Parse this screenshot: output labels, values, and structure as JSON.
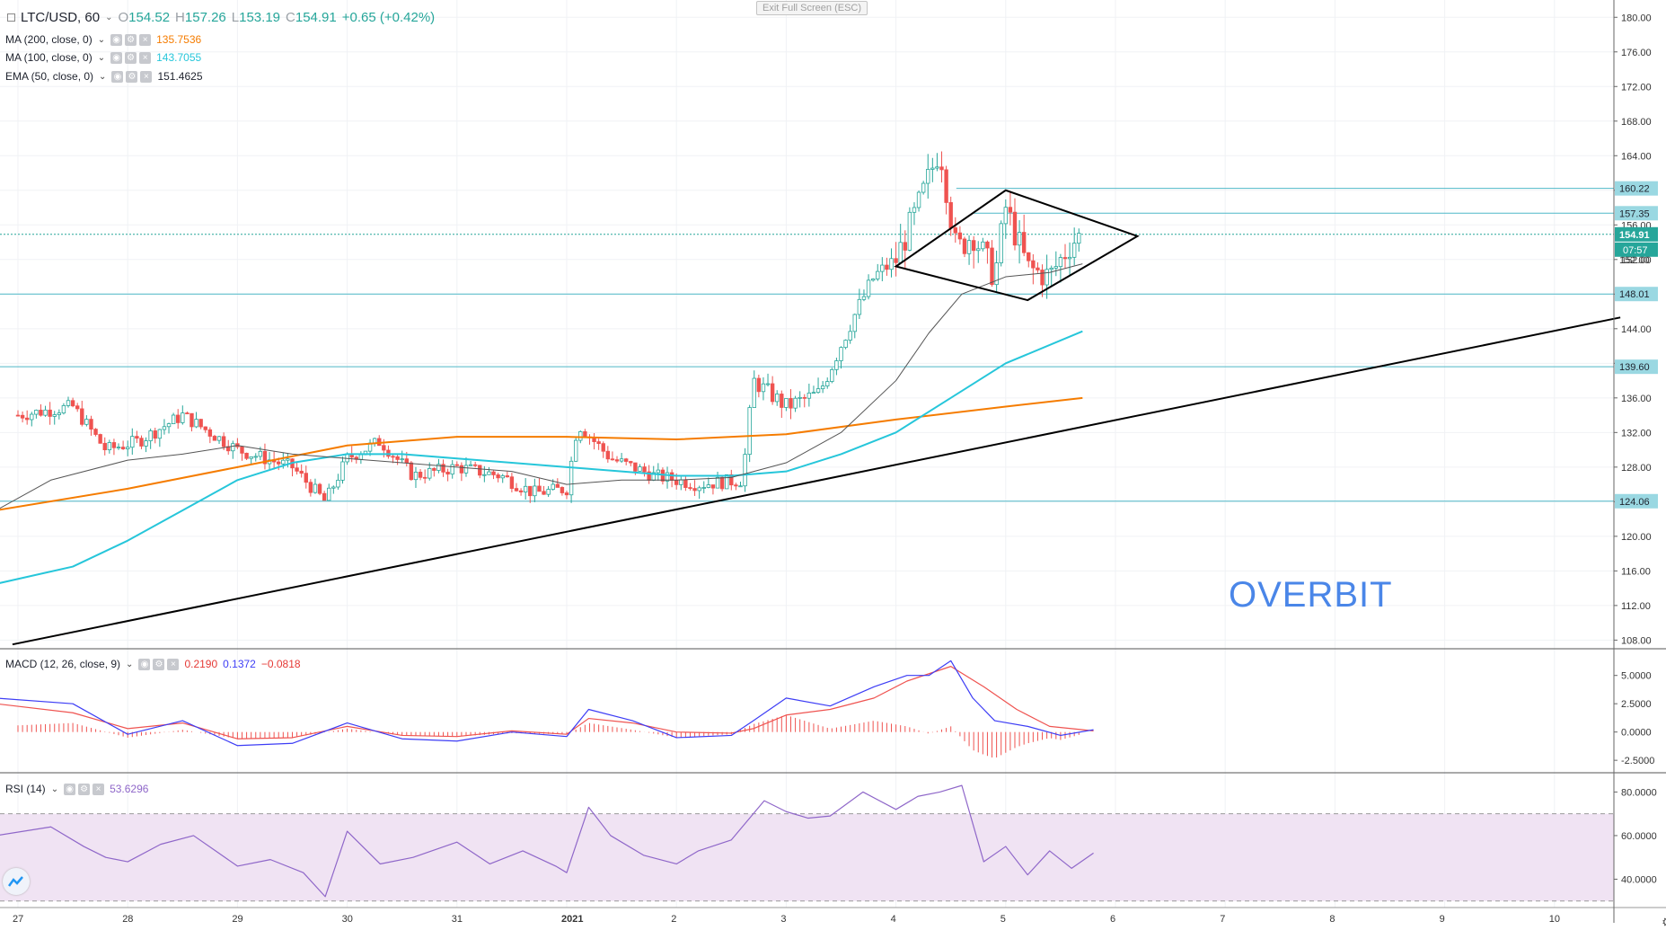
{
  "window": {
    "exit_fullscreen": "Exit Full Screen (ESC)",
    "watermark": "OVERBIT"
  },
  "legend": {
    "symbol": "LTC/USD, 60",
    "open_k": "O",
    "open": "154.52",
    "high_k": "H",
    "high": "157.26",
    "low_k": "L",
    "low": "153.19",
    "close_k": "C",
    "close": "154.91",
    "change": "+0.65 (+0.42%)",
    "ma200_label": "MA (200, close, 0)",
    "ma200_value": "135.7536",
    "ma100_label": "MA (100, close, 0)",
    "ma100_value": "143.7055",
    "ema50_label": "EMA (50, close, 0)",
    "ema50_value": "151.4625",
    "macd_label": "MACD (12, 26, close, 9)",
    "macd_v1": "0.2190",
    "macd_v2": "0.1372",
    "macd_v3": "−0.0818",
    "rsi_label": "RSI (14)",
    "rsi_value": "53.6296"
  },
  "colors": {
    "up": "#26a69a",
    "down": "#ef5350",
    "ma200": "#f57c00",
    "ma100": "#26c6da",
    "ema50": "#555555",
    "hline": "#4fb8c8",
    "macd": "#3d3df5",
    "signal": "#ef5350",
    "rsi": "#8f67c9",
    "rsi_band": "#f0e3f3",
    "trendline": "#000000"
  },
  "chart_data": [
    {
      "type": "candlestick",
      "panel": "price",
      "title": "LTC/USD, 60",
      "ylim": [
        107,
        182
      ],
      "y_ticks": [
        "108.00",
        "112.00",
        "116.00",
        "120.00",
        "124.00",
        "128.00",
        "132.00",
        "136.00",
        "140.00",
        "144.00",
        "148.00",
        "152.00",
        "156.00",
        "160.00",
        "164.00",
        "168.00",
        "172.00",
        "176.00",
        "180.00"
      ],
      "x_ticks": [
        "27",
        "28",
        "29",
        "30",
        "31",
        "2021",
        "2",
        "3",
        "4",
        "5",
        "6",
        "7",
        "8",
        "9",
        "10"
      ],
      "x_range_days": [
        -0.2,
        14.5
      ],
      "horizontal_levels": [
        160.22,
        157.35,
        148.01,
        139.6,
        124.06
      ],
      "price_labels": [
        "160.22",
        "157.35",
        "154.91",
        "07:57",
        "152.00",
        "148.01",
        "139.60",
        "124.06"
      ],
      "current_price": 154.91,
      "countdown": "07:57",
      "ma200": [
        [
          -0.2,
          123.0
        ],
        [
          1,
          125.5
        ],
        [
          2,
          128.0
        ],
        [
          3,
          130.5
        ],
        [
          4,
          131.5
        ],
        [
          5,
          131.5
        ],
        [
          6,
          131.2
        ],
        [
          7,
          131.8
        ],
        [
          8,
          133.5
        ],
        [
          9,
          135.0
        ],
        [
          9.7,
          136.0
        ]
      ],
      "ma100": [
        [
          -0.2,
          114.5
        ],
        [
          0.5,
          116.5
        ],
        [
          1,
          119.5
        ],
        [
          1.5,
          123.0
        ],
        [
          2,
          126.5
        ],
        [
          2.5,
          128.5
        ],
        [
          3,
          129.5
        ],
        [
          3.5,
          129.5
        ],
        [
          4,
          129.0
        ],
        [
          4.5,
          128.5
        ],
        [
          5,
          128.0
        ],
        [
          5.5,
          127.5
        ],
        [
          6,
          127.0
        ],
        [
          6.5,
          127.0
        ],
        [
          7,
          127.5
        ],
        [
          7.5,
          129.5
        ],
        [
          8,
          132.0
        ],
        [
          8.5,
          136.0
        ],
        [
          9,
          140.0
        ],
        [
          9.7,
          143.7
        ]
      ],
      "ema50": [
        [
          -0.2,
          123.0
        ],
        [
          0.3,
          126.5
        ],
        [
          1,
          128.8
        ],
        [
          1.5,
          129.5
        ],
        [
          2,
          130.5
        ],
        [
          2.5,
          129.5
        ],
        [
          3,
          129.0
        ],
        [
          3.5,
          128.5
        ],
        [
          4,
          128.0
        ],
        [
          4.5,
          127.5
        ],
        [
          5,
          126.0
        ],
        [
          5.5,
          126.5
        ],
        [
          6,
          126.5
        ],
        [
          6.5,
          126.8
        ],
        [
          7,
          128.5
        ],
        [
          7.5,
          132.0
        ],
        [
          8,
          138.0
        ],
        [
          8.3,
          143.5
        ],
        [
          8.6,
          148.0
        ],
        [
          9,
          150.0
        ],
        [
          9.4,
          150.5
        ],
        [
          9.7,
          151.5
        ]
      ],
      "trendline": [
        [
          -0.05,
          107.5
        ],
        [
          14.6,
          145.3
        ]
      ],
      "diamond": [
        [
          8.0,
          151.2
        ],
        [
          9.0,
          160.0
        ],
        [
          10.2,
          154.7
        ],
        [
          9.2,
          147.3
        ]
      ]
    },
    {
      "type": "line",
      "panel": "MACD (12, 26, close, 9)",
      "ylim": [
        -3.6,
        7.2
      ],
      "y_ticks": [
        "5.0000",
        "2.5000",
        "0.0000",
        "-2.5000"
      ],
      "series": [
        {
          "name": "MACD",
          "points": [
            [
              -0.2,
              3.0
            ],
            [
              0.5,
              2.5
            ],
            [
              1,
              -0.2
            ],
            [
              1.5,
              1.0
            ],
            [
              2,
              -1.2
            ],
            [
              2.5,
              -1.0
            ],
            [
              3,
              0.8
            ],
            [
              3.5,
              -0.6
            ],
            [
              4,
              -0.8
            ],
            [
              4.5,
              0.0
            ],
            [
              5,
              -0.4
            ],
            [
              5.2,
              2.0
            ],
            [
              5.6,
              1.0
            ],
            [
              6,
              -0.5
            ],
            [
              6.5,
              -0.3
            ],
            [
              6.7,
              1.0
            ],
            [
              7,
              3.0
            ],
            [
              7.4,
              2.3
            ],
            [
              7.8,
              4.0
            ],
            [
              8.1,
              5.0
            ],
            [
              8.3,
              5.0
            ],
            [
              8.5,
              6.3
            ],
            [
              8.7,
              3.0
            ],
            [
              8.9,
              1.0
            ],
            [
              9.2,
              0.5
            ],
            [
              9.5,
              -0.3
            ],
            [
              9.8,
              0.2
            ]
          ]
        },
        {
          "name": "Signal",
          "points": [
            [
              -0.2,
              2.5
            ],
            [
              0.5,
              1.7
            ],
            [
              1,
              0.3
            ],
            [
              1.5,
              0.8
            ],
            [
              2,
              -0.6
            ],
            [
              2.5,
              -0.5
            ],
            [
              3,
              0.5
            ],
            [
              3.5,
              -0.3
            ],
            [
              4,
              -0.4
            ],
            [
              4.5,
              0.1
            ],
            [
              5,
              -0.2
            ],
            [
              5.2,
              1.2
            ],
            [
              5.6,
              0.8
            ],
            [
              6,
              0.0
            ],
            [
              6.5,
              -0.1
            ],
            [
              6.7,
              0.3
            ],
            [
              7,
              1.5
            ],
            [
              7.4,
              2.0
            ],
            [
              7.8,
              3.0
            ],
            [
              8.1,
              4.5
            ],
            [
              8.5,
              5.8
            ],
            [
              8.8,
              4.0
            ],
            [
              9.1,
              2.0
            ],
            [
              9.4,
              0.5
            ],
            [
              9.8,
              0.1
            ]
          ]
        }
      ]
    },
    {
      "type": "line",
      "panel": "RSI (14)",
      "ylim": [
        27,
        88
      ],
      "y_ticks": [
        "80.0000",
        "60.0000",
        "40.0000"
      ],
      "band": [
        30,
        70
      ],
      "series": [
        {
          "name": "RSI",
          "points": [
            [
              -0.2,
              60
            ],
            [
              0.3,
              64
            ],
            [
              0.6,
              55
            ],
            [
              0.8,
              50
            ],
            [
              1.0,
              48
            ],
            [
              1.3,
              56
            ],
            [
              1.6,
              60
            ],
            [
              1.8,
              53
            ],
            [
              2.0,
              46
            ],
            [
              2.3,
              49
            ],
            [
              2.6,
              43
            ],
            [
              2.8,
              32
            ],
            [
              3.0,
              62
            ],
            [
              3.3,
              47
            ],
            [
              3.6,
              50
            ],
            [
              4.0,
              57
            ],
            [
              4.3,
              47
            ],
            [
              4.6,
              53
            ],
            [
              4.9,
              46
            ],
            [
              5.0,
              43
            ],
            [
              5.2,
              73
            ],
            [
              5.4,
              60
            ],
            [
              5.7,
              51
            ],
            [
              6.0,
              47
            ],
            [
              6.2,
              53
            ],
            [
              6.5,
              58
            ],
            [
              6.8,
              76
            ],
            [
              7.0,
              71
            ],
            [
              7.2,
              68
            ],
            [
              7.4,
              69
            ],
            [
              7.7,
              80
            ],
            [
              8.0,
              72
            ],
            [
              8.2,
              78
            ],
            [
              8.4,
              80
            ],
            [
              8.6,
              83
            ],
            [
              8.8,
              48
            ],
            [
              9.0,
              55
            ],
            [
              9.2,
              42
            ],
            [
              9.4,
              53
            ],
            [
              9.6,
              45
            ],
            [
              9.8,
              52
            ]
          ]
        }
      ]
    }
  ]
}
